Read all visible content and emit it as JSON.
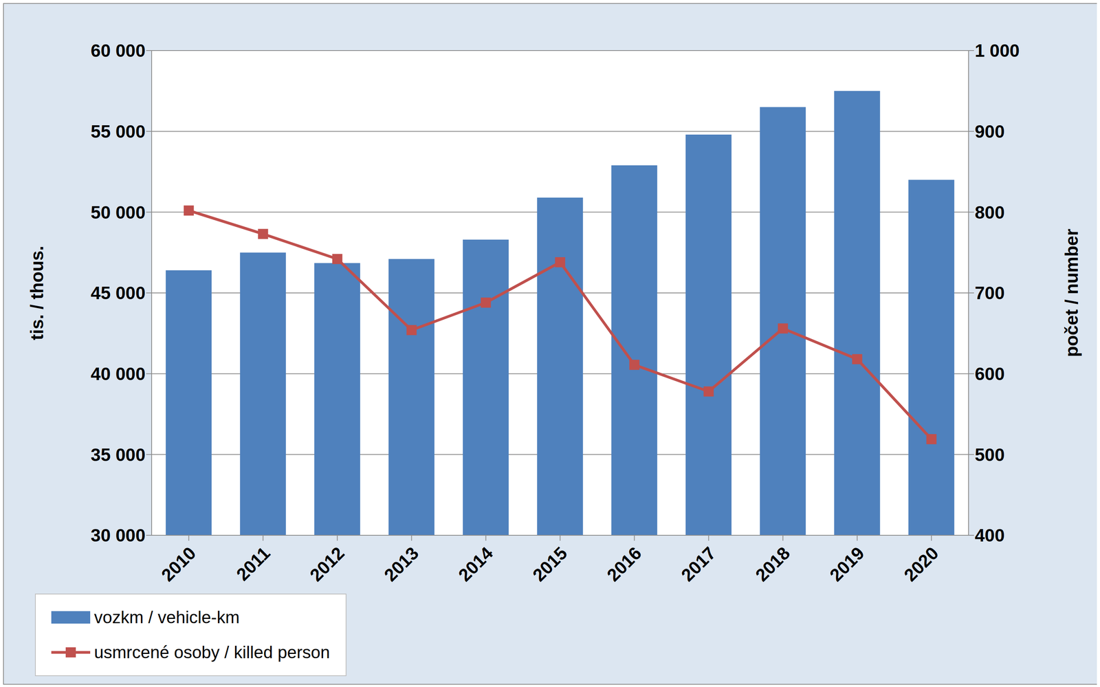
{
  "chart_data": {
    "type": "bar",
    "categories": [
      "2010",
      "2011",
      "2012",
      "2013",
      "2014",
      "2015",
      "2016",
      "2017",
      "2018",
      "2019",
      "2020"
    ],
    "series": [
      {
        "name": "vozkm / vehicle-km",
        "type": "bar",
        "color": "#4f81bd",
        "values": [
          46400,
          47500,
          46850,
          47100,
          48300,
          50900,
          52900,
          54800,
          56500,
          57500,
          52000
        ]
      },
      {
        "name": "usmrcené osoby / killed person",
        "type": "line",
        "axis": "y2",
        "color": "#c0504d",
        "marker": "square",
        "values": [
          802,
          773,
          742,
          654,
          688,
          738,
          611,
          578,
          656,
          618,
          519
        ]
      }
    ],
    "ylabel": "tis. / thous.",
    "y2label": "počet / number",
    "ylim": [
      30000,
      60000
    ],
    "yticks": [
      {
        "value": 30000,
        "label": "30 000"
      },
      {
        "value": 35000,
        "label": "35 000"
      },
      {
        "value": 40000,
        "label": "40 000"
      },
      {
        "value": 45000,
        "label": "45 000"
      },
      {
        "value": 50000,
        "label": "50 000"
      },
      {
        "value": 55000,
        "label": "55 000"
      },
      {
        "value": 60000,
        "label": "60 000"
      }
    ],
    "y2lim": [
      400,
      1000
    ],
    "y2ticks": [
      400,
      500,
      600,
      700,
      800,
      900,
      {
        "value": 1000,
        "label": "1 000"
      }
    ],
    "grid": true,
    "legend": "lower right"
  }
}
